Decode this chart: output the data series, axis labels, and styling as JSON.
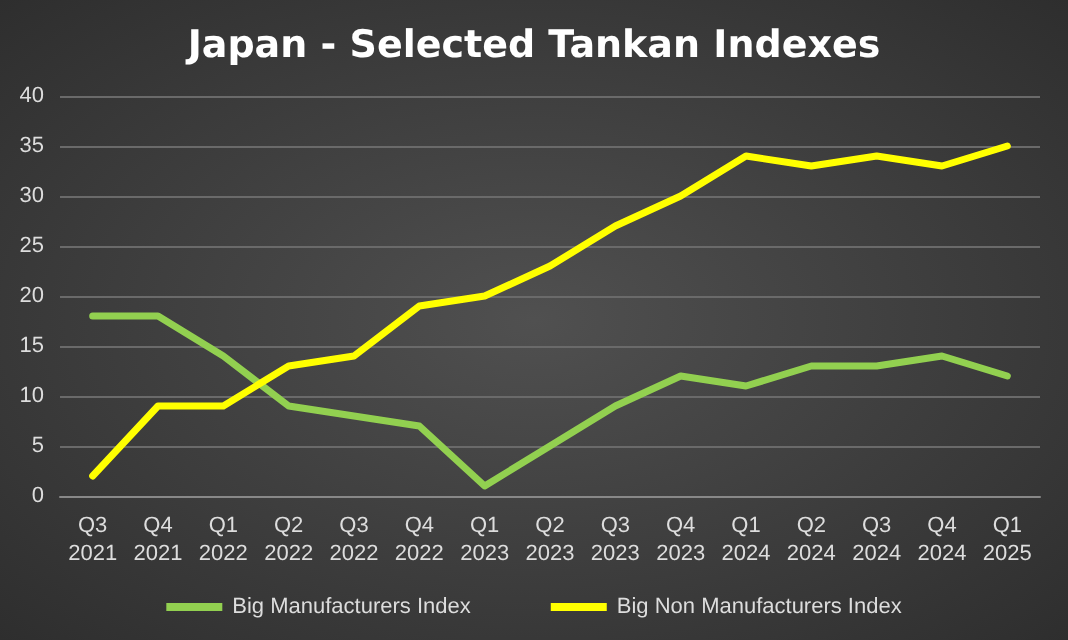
{
  "chart_data": {
    "type": "line",
    "title": "Japan - Selected Tankan Indexes",
    "categories": [
      "Q3 2021",
      "Q4 2021",
      "Q1 2022",
      "Q2 2022",
      "Q3 2022",
      "Q4 2022",
      "Q1 2023",
      "Q2 2023",
      "Q3 2023",
      "Q4 2023",
      "Q1 2024",
      "Q2 2024",
      "Q3 2024",
      "Q4 2024",
      "Q1 2025"
    ],
    "series": [
      {
        "name": "Big Manufacturers Index",
        "color": "#92d050",
        "values": [
          18,
          18,
          14,
          9,
          8,
          7,
          1,
          5,
          9,
          12,
          11,
          13,
          13,
          14,
          12
        ]
      },
      {
        "name": "Big Non Manufacturers Index",
        "color": "#ffff00",
        "values": [
          2,
          9,
          9,
          13,
          14,
          19,
          20,
          23,
          27,
          30,
          34,
          33,
          34,
          33,
          35
        ]
      }
    ],
    "ylim": [
      0,
      40
    ],
    "yticks": [
      0,
      5,
      10,
      15,
      20,
      25,
      30,
      35,
      40
    ],
    "grid": "y",
    "legend": "bottom",
    "marker": "none",
    "line_style": "solid"
  }
}
